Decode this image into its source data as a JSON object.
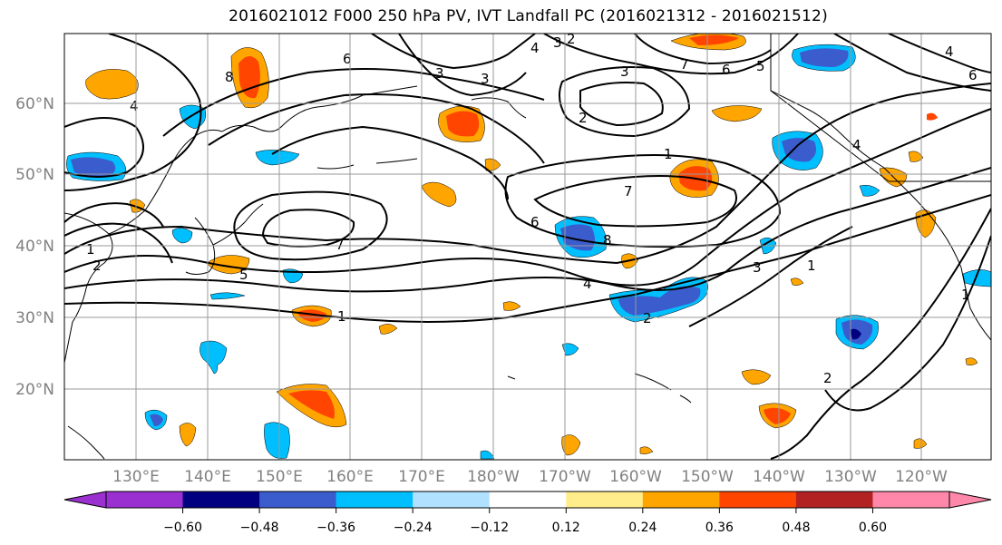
{
  "title": "2016021012 F000 250 hPa PV, IVT Landfall PC (2016021312 - 2016021512)",
  "lat_labels": [
    "60°N",
    "50°N",
    "40°N",
    "30°N",
    "20°N"
  ],
  "lon_labels": [
    "130°E",
    "140°E",
    "150°E",
    "160°E",
    "170°E",
    "180°W",
    "170°W",
    "160°W",
    "150°W",
    "140°W",
    "130°W",
    "120°W"
  ],
  "colorbar": {
    "colors": [
      "#9b30d0",
      "#000080",
      "#3a5ccc",
      "#00bfff",
      "#b0e2ff",
      "#ffffff",
      "#ffec8b",
      "#ffa500",
      "#ff4500",
      "#b22222",
      "#ff88aa"
    ],
    "tick_labels": [
      "−0.60",
      "−0.48",
      "−0.36",
      "−0.24",
      "−0.12",
      "0.12",
      "0.24",
      "0.36",
      "0.48",
      "0.60"
    ]
  },
  "contour_labels": [
    "1",
    "2",
    "3",
    "4",
    "5",
    "6",
    "7",
    "8"
  ]
}
